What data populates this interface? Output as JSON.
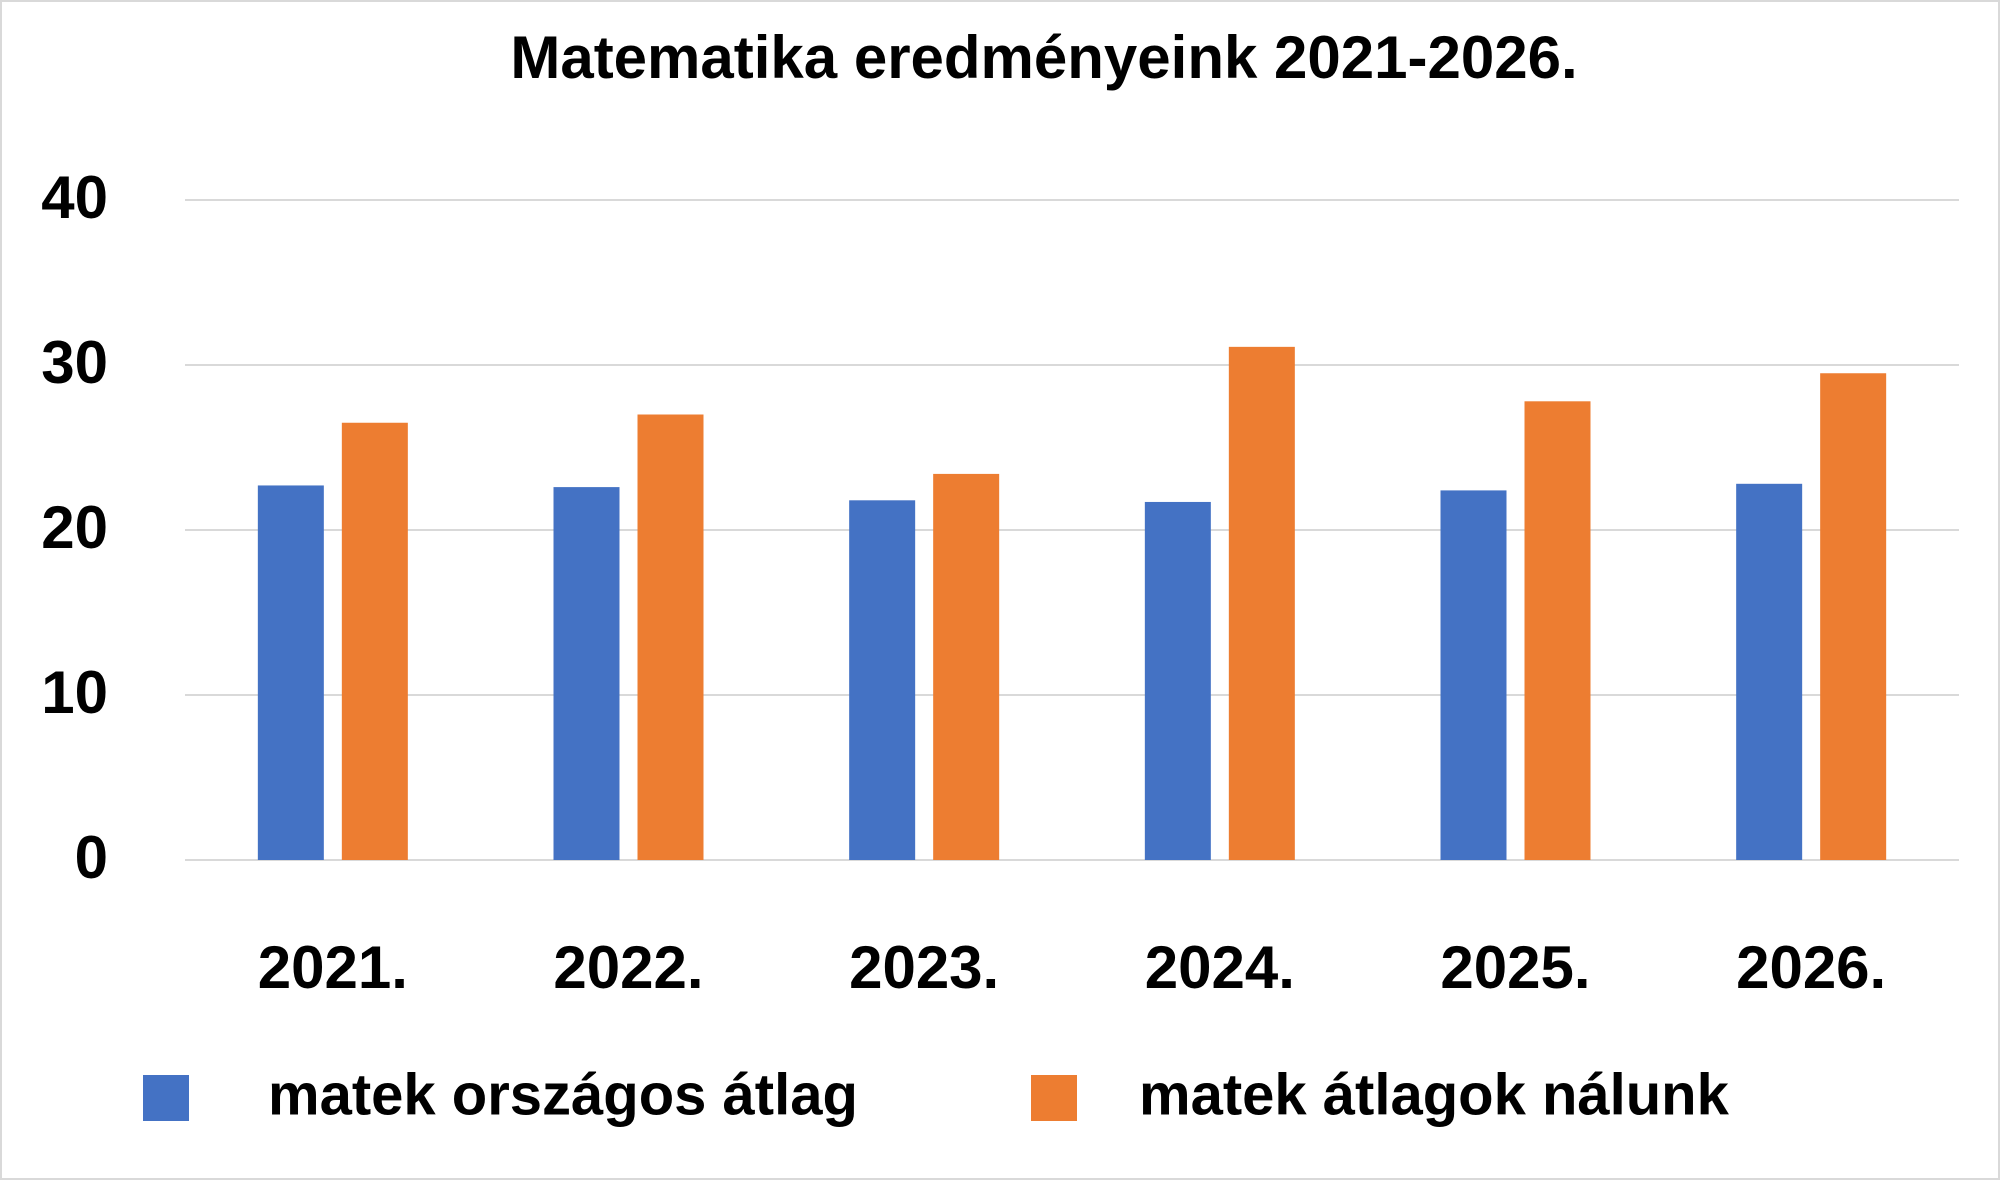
{
  "chart_data": {
    "type": "bar",
    "title": "Matematika eredményeink 2021-2026.",
    "categories": [
      "2021.",
      "2022.",
      "2023.",
      "2024.",
      "2025.",
      "2026."
    ],
    "series": [
      {
        "name": "matek országos átlag",
        "color": "#4472c4",
        "values": [
          22.7,
          22.6,
          21.8,
          21.7,
          22.4,
          22.8
        ]
      },
      {
        "name": "matek átlagok nálunk",
        "color": "#ed7d31",
        "values": [
          26.5,
          27.0,
          23.4,
          31.1,
          27.8,
          29.5
        ]
      }
    ],
    "ylim": [
      0,
      40
    ],
    "yticks": [
      0,
      10,
      20,
      30,
      40
    ],
    "grid": true,
    "legend": "bottom"
  }
}
